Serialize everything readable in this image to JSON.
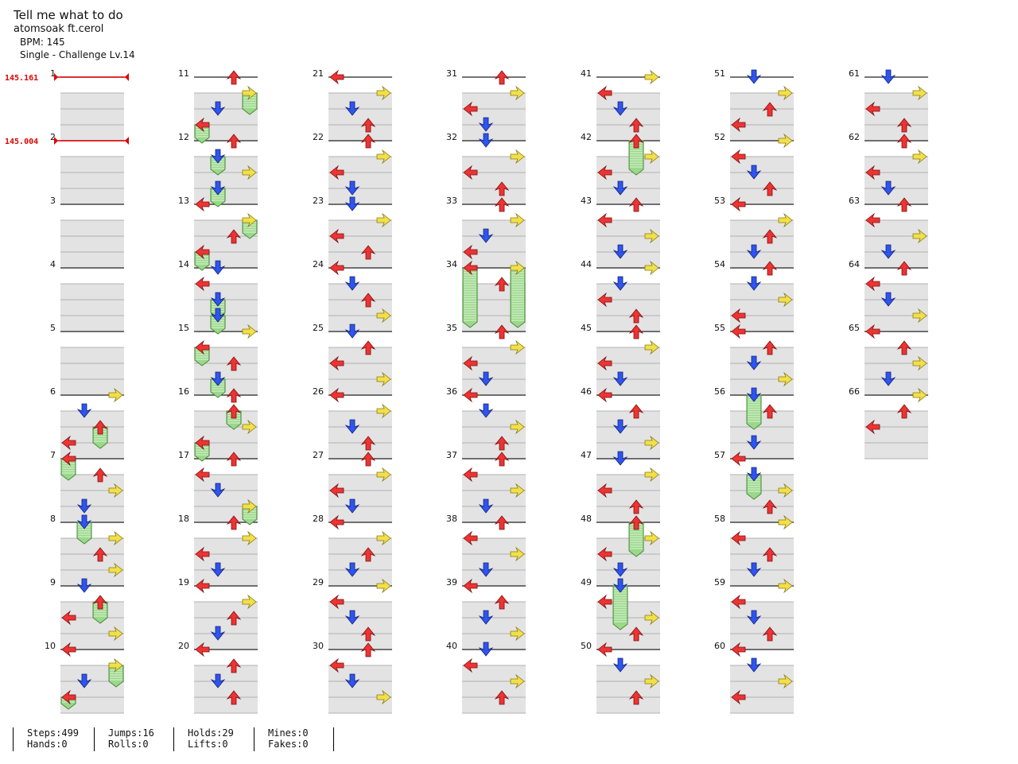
{
  "song": {
    "title": "Tell me what to do",
    "artist": "atomsoak ft.cerol",
    "bpm": "BPM: 145",
    "difficulty": "Single - Challenge  Lv.14"
  },
  "bpm_changes": [
    {
      "measure": 1,
      "label": "145.161"
    },
    {
      "measure": 2,
      "label": "145.004"
    }
  ],
  "measure_count": 66,
  "colors": {
    "left": "#ee3333",
    "down": "#2f55ee",
    "up": "#ee3333",
    "right": "#f2e04a",
    "hold": "#9ad88a",
    "bpm_line": "#e00000",
    "band": "#e3e3e3"
  },
  "icons": {
    "left": "arrow-left-icon",
    "down": "arrow-down-icon",
    "up": "arrow-up-icon",
    "right": "arrow-right-icon",
    "hold": "hold-icon"
  },
  "notes": [
    {
      "m": 6,
      "p": 0,
      "c": 3,
      "k": "tap"
    },
    {
      "m": 6,
      "p": 0.25,
      "c": 1,
      "k": "tap"
    },
    {
      "m": 6,
      "p": 0.5,
      "c": 2,
      "k": "hold",
      "len": 0.25
    },
    {
      "m": 6,
      "p": 0.75,
      "c": 0,
      "k": "tap"
    },
    {
      "m": 7,
      "p": 0,
      "c": 0,
      "k": "hold",
      "len": 0.25
    },
    {
      "m": 7,
      "p": 0.25,
      "c": 2,
      "k": "tap"
    },
    {
      "m": 7,
      "p": 0.5,
      "c": 3,
      "k": "tap"
    },
    {
      "m": 7,
      "p": 0.75,
      "c": 1,
      "k": "tap"
    },
    {
      "m": 8,
      "p": 0,
      "c": 1,
      "k": "hold",
      "len": 0.25
    },
    {
      "m": 8,
      "p": 0.25,
      "c": 3,
      "k": "tap"
    },
    {
      "m": 8,
      "p": 0.5,
      "c": 2,
      "k": "tap"
    },
    {
      "m": 8,
      "p": 0.75,
      "c": 3,
      "k": "tap"
    },
    {
      "m": 9,
      "p": 0,
      "c": 1,
      "k": "tap"
    },
    {
      "m": 9,
      "p": 0.25,
      "c": 2,
      "k": "hold",
      "len": 0.25
    },
    {
      "m": 9,
      "p": 0.5,
      "c": 0,
      "k": "tap"
    },
    {
      "m": 9,
      "p": 0.75,
      "c": 3,
      "k": "tap"
    },
    {
      "m": 10,
      "p": 0,
      "c": 0,
      "k": "tap"
    },
    {
      "m": 10,
      "p": 0.25,
      "c": 3,
      "k": "hold",
      "len": 0.25
    },
    {
      "m": 10,
      "p": 0.5,
      "c": 1,
      "k": "tap"
    },
    {
      "m": 10,
      "p": 0.75,
      "c": 0,
      "k": "hold",
      "len": 0.1
    },
    {
      "m": 11,
      "p": 0,
      "c": 2,
      "k": "tap"
    },
    {
      "m": 11,
      "p": 0.25,
      "c": 3,
      "k": "hold",
      "len": 0.25
    },
    {
      "m": 11,
      "p": 0.5,
      "c": 1,
      "k": "tap"
    },
    {
      "m": 11,
      "p": 0.75,
      "c": 0,
      "k": "hold",
      "len": 0.2
    },
    {
      "m": 12,
      "p": 0,
      "c": 2,
      "k": "tap"
    },
    {
      "m": 12,
      "p": 0.25,
      "c": 1,
      "k": "hold",
      "len": 0.2
    },
    {
      "m": 12,
      "p": 0.5,
      "c": 3,
      "k": "tap"
    },
    {
      "m": 12,
      "p": 0.75,
      "c": 1,
      "k": "hold",
      "len": 0.2
    },
    {
      "m": 13,
      "p": 0,
      "c": 0,
      "k": "tap"
    },
    {
      "m": 13,
      "p": 0.25,
      "c": 3,
      "k": "hold",
      "len": 0.2
    },
    {
      "m": 13,
      "p": 0.5,
      "c": 2,
      "k": "tap"
    },
    {
      "m": 13,
      "p": 0.75,
      "c": 0,
      "k": "hold",
      "len": 0.2
    },
    {
      "m": 14,
      "p": 0,
      "c": 1,
      "k": "tap"
    },
    {
      "m": 14,
      "p": 0.25,
      "c": 0,
      "k": "tap"
    },
    {
      "m": 14,
      "p": 0.5,
      "c": 1,
      "k": "hold",
      "len": 0.2
    },
    {
      "m": 14,
      "p": 0.75,
      "c": 1,
      "k": "hold",
      "len": 0.2
    },
    {
      "m": 15,
      "p": 0,
      "c": 3,
      "k": "tap"
    },
    {
      "m": 15,
      "p": 0.25,
      "c": 0,
      "k": "hold",
      "len": 0.2
    },
    {
      "m": 15,
      "p": 0.5,
      "c": 2,
      "k": "tap"
    },
    {
      "m": 15,
      "p": 0.75,
      "c": 1,
      "k": "hold",
      "len": 0.2
    },
    {
      "m": 16,
      "p": 0,
      "c": 2,
      "k": "tap"
    },
    {
      "m": 16,
      "p": 0.25,
      "c": 2,
      "k": "hold",
      "len": 0.2
    },
    {
      "m": 16,
      "p": 0.5,
      "c": 3,
      "k": "tap"
    },
    {
      "m": 16,
      "p": 0.75,
      "c": 0,
      "k": "hold",
      "len": 0.2
    },
    {
      "m": 17,
      "p": 0,
      "c": 2,
      "k": "tap"
    },
    {
      "m": 17,
      "p": 0.25,
      "c": 0,
      "k": "tap"
    },
    {
      "m": 17,
      "p": 0.5,
      "c": 1,
      "k": "tap"
    },
    {
      "m": 17,
      "p": 0.75,
      "c": 3,
      "k": "hold",
      "len": 0.2
    },
    {
      "m": 18,
      "p": 0,
      "c": 2,
      "k": "tap"
    },
    {
      "m": 18,
      "p": 0.25,
      "c": 3,
      "k": "tap"
    },
    {
      "m": 18,
      "p": 0.5,
      "c": 0,
      "k": "tap"
    },
    {
      "m": 18,
      "p": 0.75,
      "c": 1,
      "k": "tap"
    },
    {
      "m": 19,
      "p": 0,
      "c": 0,
      "k": "tap"
    },
    {
      "m": 19,
      "p": 0.25,
      "c": 3,
      "k": "tap"
    },
    {
      "m": 19,
      "p": 0.5,
      "c": 2,
      "k": "tap"
    },
    {
      "m": 19,
      "p": 0.75,
      "c": 1,
      "k": "tap"
    },
    {
      "m": 20,
      "p": 0,
      "c": 0,
      "k": "tap"
    },
    {
      "m": 20,
      "p": 0.25,
      "c": 2,
      "k": "tap"
    },
    {
      "m": 20,
      "p": 0.5,
      "c": 1,
      "k": "tap"
    },
    {
      "m": 20,
      "p": 0.75,
      "c": 2,
      "k": "tap"
    },
    {
      "m": 21,
      "p": 0,
      "c": 0,
      "k": "tap"
    },
    {
      "m": 21,
      "p": 0.25,
      "c": 3,
      "k": "tap"
    },
    {
      "m": 21,
      "p": 0.5,
      "c": 1,
      "k": "tap"
    },
    {
      "m": 21,
      "p": 0.75,
      "c": 2,
      "k": "tap"
    },
    {
      "m": 22,
      "p": 0,
      "c": 2,
      "k": "tap"
    },
    {
      "m": 22,
      "p": 0.25,
      "c": 3,
      "k": "tap"
    },
    {
      "m": 22,
      "p": 0.5,
      "c": 0,
      "k": "tap"
    },
    {
      "m": 22,
      "p": 0.75,
      "c": 1,
      "k": "tap"
    },
    {
      "m": 23,
      "p": 0,
      "c": 1,
      "k": "tap"
    },
    {
      "m": 23,
      "p": 0.25,
      "c": 3,
      "k": "tap"
    },
    {
      "m": 23,
      "p": 0.5,
      "c": 0,
      "k": "tap"
    },
    {
      "m": 23,
      "p": 0.75,
      "c": 2,
      "k": "tap"
    },
    {
      "m": 24,
      "p": 0,
      "c": 0,
      "k": "tap"
    },
    {
      "m": 24,
      "p": 0.25,
      "c": 1,
      "k": "tap"
    },
    {
      "m": 24,
      "p": 0.5,
      "c": 2,
      "k": "tap"
    },
    {
      "m": 24,
      "p": 0.75,
      "c": 3,
      "k": "tap"
    },
    {
      "m": 25,
      "p": 0,
      "c": 1,
      "k": "tap"
    },
    {
      "m": 25,
      "p": 0.25,
      "c": 2,
      "k": "tap"
    },
    {
      "m": 25,
      "p": 0.5,
      "c": 0,
      "k": "tap"
    },
    {
      "m": 25,
      "p": 0.75,
      "c": 3,
      "k": "tap"
    },
    {
      "m": 26,
      "p": 0,
      "c": 0,
      "k": "tap"
    },
    {
      "m": 26,
      "p": 0.25,
      "c": 3,
      "k": "tap"
    },
    {
      "m": 26,
      "p": 0.5,
      "c": 1,
      "k": "tap"
    },
    {
      "m": 26,
      "p": 0.75,
      "c": 2,
      "k": "tap"
    },
    {
      "m": 27,
      "p": 0,
      "c": 2,
      "k": "tap"
    },
    {
      "m": 27,
      "p": 0.25,
      "c": 3,
      "k": "tap"
    },
    {
      "m": 27,
      "p": 0.5,
      "c": 0,
      "k": "tap"
    },
    {
      "m": 27,
      "p": 0.75,
      "c": 1,
      "k": "tap"
    },
    {
      "m": 28,
      "p": 0,
      "c": 0,
      "k": "tap"
    },
    {
      "m": 28,
      "p": 0.25,
      "c": 3,
      "k": "tap"
    },
    {
      "m": 28,
      "p": 0.5,
      "c": 2,
      "k": "tap"
    },
    {
      "m": 28,
      "p": 0.75,
      "c": 1,
      "k": "tap"
    },
    {
      "m": 29,
      "p": 0,
      "c": 3,
      "k": "tap"
    },
    {
      "m": 29,
      "p": 0.25,
      "c": 0,
      "k": "tap"
    },
    {
      "m": 29,
      "p": 0.5,
      "c": 1,
      "k": "tap"
    },
    {
      "m": 29,
      "p": 0.75,
      "c": 2,
      "k": "tap"
    },
    {
      "m": 30,
      "p": 0,
      "c": 2,
      "k": "tap"
    },
    {
      "m": 30,
      "p": 0.25,
      "c": 0,
      "k": "tap"
    },
    {
      "m": 30,
      "p": 0.5,
      "c": 1,
      "k": "tap"
    },
    {
      "m": 30,
      "p": 0.75,
      "c": 3,
      "k": "tap"
    },
    {
      "m": 31,
      "p": 0,
      "c": 2,
      "k": "tap"
    },
    {
      "m": 31,
      "p": 0.25,
      "c": 3,
      "k": "tap"
    },
    {
      "m": 31,
      "p": 0.5,
      "c": 0,
      "k": "tap"
    },
    {
      "m": 31,
      "p": 0.75,
      "c": 1,
      "k": "tap"
    },
    {
      "m": 32,
      "p": 0,
      "c": 1,
      "k": "tap"
    },
    {
      "m": 32,
      "p": 0.25,
      "c": 3,
      "k": "tap"
    },
    {
      "m": 32,
      "p": 0.5,
      "c": 0,
      "k": "tap"
    },
    {
      "m": 32,
      "p": 0.75,
      "c": 2,
      "k": "tap"
    },
    {
      "m": 33,
      "p": 0,
      "c": 2,
      "k": "tap"
    },
    {
      "m": 33,
      "p": 0.25,
      "c": 3,
      "k": "tap"
    },
    {
      "m": 33,
      "p": 0.5,
      "c": 1,
      "k": "tap"
    },
    {
      "m": 33,
      "p": 0.75,
      "c": 0,
      "k": "tap"
    },
    {
      "m": 34,
      "p": 0,
      "c": 0,
      "k": "hold",
      "len": 0.85
    },
    {
      "m": 34,
      "p": 0,
      "c": 3,
      "k": "hold",
      "len": 0.85
    },
    {
      "m": 34,
      "p": 0.25,
      "c": 2,
      "k": "tap"
    },
    {
      "m": 35,
      "p": 0,
      "c": 2,
      "k": "tap"
    },
    {
      "m": 35,
      "p": 0.25,
      "c": 3,
      "k": "tap"
    },
    {
      "m": 35,
      "p": 0.5,
      "c": 0,
      "k": "tap"
    },
    {
      "m": 35,
      "p": 0.75,
      "c": 1,
      "k": "tap"
    },
    {
      "m": 36,
      "p": 0,
      "c": 0,
      "k": "tap"
    },
    {
      "m": 36,
      "p": 0.25,
      "c": 1,
      "k": "tap"
    },
    {
      "m": 36,
      "p": 0.5,
      "c": 3,
      "k": "tap"
    },
    {
      "m": 36,
      "p": 0.75,
      "c": 2,
      "k": "tap"
    },
    {
      "m": 37,
      "p": 0,
      "c": 2,
      "k": "tap"
    },
    {
      "m": 37,
      "p": 0.25,
      "c": 0,
      "k": "tap"
    },
    {
      "m": 37,
      "p": 0.5,
      "c": 3,
      "k": "tap"
    },
    {
      "m": 37,
      "p": 0.75,
      "c": 1,
      "k": "tap"
    },
    {
      "m": 38,
      "p": 0,
      "c": 2,
      "k": "tap"
    },
    {
      "m": 38,
      "p": 0.25,
      "c": 0,
      "k": "tap"
    },
    {
      "m": 38,
      "p": 0.5,
      "c": 3,
      "k": "tap"
    },
    {
      "m": 38,
      "p": 0.75,
      "c": 1,
      "k": "tap"
    },
    {
      "m": 39,
      "p": 0,
      "c": 0,
      "k": "tap"
    },
    {
      "m": 39,
      "p": 0.25,
      "c": 2,
      "k": "tap"
    },
    {
      "m": 39,
      "p": 0.5,
      "c": 1,
      "k": "tap"
    },
    {
      "m": 39,
      "p": 0.75,
      "c": 3,
      "k": "tap"
    },
    {
      "m": 40,
      "p": 0,
      "c": 1,
      "k": "tap"
    },
    {
      "m": 40,
      "p": 0.25,
      "c": 0,
      "k": "tap"
    },
    {
      "m": 40,
      "p": 0.5,
      "c": 3,
      "k": "tap"
    },
    {
      "m": 40,
      "p": 0.75,
      "c": 2,
      "k": "tap"
    },
    {
      "m": 41,
      "p": 0,
      "c": 3,
      "k": "tap"
    },
    {
      "m": 41,
      "p": 0.25,
      "c": 0,
      "k": "tap"
    },
    {
      "m": 41,
      "p": 0.5,
      "c": 1,
      "k": "tap"
    },
    {
      "m": 41,
      "p": 0.75,
      "c": 2,
      "k": "tap"
    },
    {
      "m": 42,
      "p": 0,
      "c": 2,
      "k": "hold",
      "len": 0.45
    },
    {
      "m": 42,
      "p": 0.25,
      "c": 3,
      "k": "tap"
    },
    {
      "m": 42,
      "p": 0.5,
      "c": 0,
      "k": "tap"
    },
    {
      "m": 42,
      "p": 0.75,
      "c": 1,
      "k": "tap"
    },
    {
      "m": 43,
      "p": 0,
      "c": 2,
      "k": "tap"
    },
    {
      "m": 43,
      "p": 0.25,
      "c": 0,
      "k": "tap"
    },
    {
      "m": 43,
      "p": 0.5,
      "c": 3,
      "k": "tap"
    },
    {
      "m": 43,
      "p": 0.75,
      "c": 1,
      "k": "tap"
    },
    {
      "m": 44,
      "p": 0,
      "c": 3,
      "k": "tap"
    },
    {
      "m": 44,
      "p": 0.25,
      "c": 1,
      "k": "tap"
    },
    {
      "m": 44,
      "p": 0.5,
      "c": 0,
      "k": "tap"
    },
    {
      "m": 44,
      "p": 0.75,
      "c": 2,
      "k": "tap"
    },
    {
      "m": 45,
      "p": 0,
      "c": 2,
      "k": "tap"
    },
    {
      "m": 45,
      "p": 0.25,
      "c": 3,
      "k": "tap"
    },
    {
      "m": 45,
      "p": 0.5,
      "c": 0,
      "k": "tap"
    },
    {
      "m": 45,
      "p": 0.75,
      "c": 1,
      "k": "tap"
    },
    {
      "m": 46,
      "p": 0,
      "c": 0,
      "k": "tap"
    },
    {
      "m": 46,
      "p": 0.25,
      "c": 2,
      "k": "tap"
    },
    {
      "m": 46,
      "p": 0.5,
      "c": 1,
      "k": "tap"
    },
    {
      "m": 46,
      "p": 0.75,
      "c": 3,
      "k": "tap"
    },
    {
      "m": 47,
      "p": 0,
      "c": 1,
      "k": "tap"
    },
    {
      "m": 47,
      "p": 0.25,
      "c": 3,
      "k": "tap"
    },
    {
      "m": 47,
      "p": 0.5,
      "c": 0,
      "k": "tap"
    },
    {
      "m": 47,
      "p": 0.75,
      "c": 2,
      "k": "tap"
    },
    {
      "m": 48,
      "p": 0,
      "c": 2,
      "k": "hold",
      "len": 0.45
    },
    {
      "m": 48,
      "p": 0.25,
      "c": 3,
      "k": "tap"
    },
    {
      "m": 48,
      "p": 0.5,
      "c": 0,
      "k": "tap"
    },
    {
      "m": 48,
      "p": 0.75,
      "c": 1,
      "k": "tap"
    },
    {
      "m": 49,
      "p": 0,
      "c": 1,
      "k": "hold",
      "len": 0.6
    },
    {
      "m": 49,
      "p": 0.25,
      "c": 0,
      "k": "tap"
    },
    {
      "m": 49,
      "p": 0.5,
      "c": 3,
      "k": "tap"
    },
    {
      "m": 49,
      "p": 0.75,
      "c": 2,
      "k": "tap"
    },
    {
      "m": 50,
      "p": 0,
      "c": 0,
      "k": "tap"
    },
    {
      "m": 50,
      "p": 0.25,
      "c": 1,
      "k": "tap"
    },
    {
      "m": 50,
      "p": 0.5,
      "c": 3,
      "k": "tap"
    },
    {
      "m": 50,
      "p": 0.75,
      "c": 2,
      "k": "tap"
    },
    {
      "m": 51,
      "p": 0,
      "c": 1,
      "k": "tap"
    },
    {
      "m": 51,
      "p": 0.25,
      "c": 3,
      "k": "tap"
    },
    {
      "m": 51,
      "p": 0.5,
      "c": 2,
      "k": "tap"
    },
    {
      "m": 51,
      "p": 0.75,
      "c": 0,
      "k": "tap"
    },
    {
      "m": 52,
      "p": 0,
      "c": 3,
      "k": "tap"
    },
    {
      "m": 52,
      "p": 0.25,
      "c": 0,
      "k": "tap"
    },
    {
      "m": 52,
      "p": 0.5,
      "c": 1,
      "k": "tap"
    },
    {
      "m": 52,
      "p": 0.75,
      "c": 2,
      "k": "tap"
    },
    {
      "m": 53,
      "p": 0,
      "c": 0,
      "k": "tap"
    },
    {
      "m": 53,
      "p": 0.25,
      "c": 3,
      "k": "tap"
    },
    {
      "m": 53,
      "p": 0.5,
      "c": 2,
      "k": "tap"
    },
    {
      "m": 53,
      "p": 0.75,
      "c": 1,
      "k": "tap"
    },
    {
      "m": 54,
      "p": 0,
      "c": 2,
      "k": "tap"
    },
    {
      "m": 54,
      "p": 0.25,
      "c": 1,
      "k": "tap"
    },
    {
      "m": 54,
      "p": 0.5,
      "c": 3,
      "k": "tap"
    },
    {
      "m": 54,
      "p": 0.75,
      "c": 0,
      "k": "tap"
    },
    {
      "m": 55,
      "p": 0,
      "c": 0,
      "k": "tap"
    },
    {
      "m": 55,
      "p": 0.25,
      "c": 2,
      "k": "tap"
    },
    {
      "m": 55,
      "p": 0.5,
      "c": 1,
      "k": "tap"
    },
    {
      "m": 55,
      "p": 0.75,
      "c": 3,
      "k": "tap"
    },
    {
      "m": 56,
      "p": 0,
      "c": 1,
      "k": "hold",
      "len": 0.45
    },
    {
      "m": 56,
      "p": 0.25,
      "c": 2,
      "k": "tap"
    },
    {
      "m": 56,
      "p": 0.75,
      "c": 1,
      "k": "tap"
    },
    {
      "m": 57,
      "p": 0,
      "c": 0,
      "k": "tap"
    },
    {
      "m": 57,
      "p": 0.25,
      "c": 1,
      "k": "hold",
      "len": 0.3
    },
    {
      "m": 57,
      "p": 0.5,
      "c": 3,
      "k": "tap"
    },
    {
      "m": 57,
      "p": 0.75,
      "c": 2,
      "k": "tap"
    },
    {
      "m": 58,
      "p": 0,
      "c": 3,
      "k": "tap"
    },
    {
      "m": 58,
      "p": 0.25,
      "c": 0,
      "k": "tap"
    },
    {
      "m": 58,
      "p": 0.5,
      "c": 2,
      "k": "tap"
    },
    {
      "m": 58,
      "p": 0.75,
      "c": 1,
      "k": "tap"
    },
    {
      "m": 59,
      "p": 0,
      "c": 3,
      "k": "tap"
    },
    {
      "m": 59,
      "p": 0.25,
      "c": 0,
      "k": "tap"
    },
    {
      "m": 59,
      "p": 0.5,
      "c": 1,
      "k": "tap"
    },
    {
      "m": 59,
      "p": 0.75,
      "c": 2,
      "k": "tap"
    },
    {
      "m": 60,
      "p": 0,
      "c": 0,
      "k": "tap"
    },
    {
      "m": 60,
      "p": 0.25,
      "c": 1,
      "k": "tap"
    },
    {
      "m": 60,
      "p": 0.5,
      "c": 3,
      "k": "tap"
    },
    {
      "m": 60,
      "p": 0.75,
      "c": 0,
      "k": "tap"
    },
    {
      "m": 61,
      "p": 0,
      "c": 1,
      "k": "tap"
    },
    {
      "m": 61,
      "p": 0.25,
      "c": 3,
      "k": "tap"
    },
    {
      "m": 61,
      "p": 0.5,
      "c": 0,
      "k": "tap"
    },
    {
      "m": 61,
      "p": 0.75,
      "c": 2,
      "k": "tap"
    },
    {
      "m": 62,
      "p": 0,
      "c": 2,
      "k": "tap"
    },
    {
      "m": 62,
      "p": 0.25,
      "c": 3,
      "k": "tap"
    },
    {
      "m": 62,
      "p": 0.5,
      "c": 0,
      "k": "tap"
    },
    {
      "m": 62,
      "p": 0.75,
      "c": 1,
      "k": "tap"
    },
    {
      "m": 63,
      "p": 0,
      "c": 2,
      "k": "tap"
    },
    {
      "m": 63,
      "p": 0.25,
      "c": 0,
      "k": "tap"
    },
    {
      "m": 63,
      "p": 0.5,
      "c": 3,
      "k": "tap"
    },
    {
      "m": 63,
      "p": 0.75,
      "c": 1,
      "k": "tap"
    },
    {
      "m": 64,
      "p": 0,
      "c": 2,
      "k": "tap"
    },
    {
      "m": 64,
      "p": 0.25,
      "c": 0,
      "k": "tap"
    },
    {
      "m": 64,
      "p": 0.5,
      "c": 1,
      "k": "tap"
    },
    {
      "m": 64,
      "p": 0.75,
      "c": 3,
      "k": "tap"
    },
    {
      "m": 65,
      "p": 0,
      "c": 0,
      "k": "tap"
    },
    {
      "m": 65,
      "p": 0.25,
      "c": 2,
      "k": "tap"
    },
    {
      "m": 65,
      "p": 0.5,
      "c": 3,
      "k": "tap"
    },
    {
      "m": 65,
      "p": 0.75,
      "c": 1,
      "k": "tap"
    },
    {
      "m": 66,
      "p": 0,
      "c": 3,
      "k": "tap"
    },
    {
      "m": 66,
      "p": 0.25,
      "c": 2,
      "k": "tap"
    },
    {
      "m": 66,
      "p": 0.5,
      "c": 0,
      "k": "tap"
    }
  ],
  "stats": [
    {
      "top": "Steps:499",
      "bottom": "Hands:0"
    },
    {
      "top": "Jumps:16",
      "bottom": "Rolls:0"
    },
    {
      "top": "Holds:29",
      "bottom": "Lifts:0"
    },
    {
      "top": "Mines:0",
      "bottom": "Fakes:0"
    }
  ]
}
